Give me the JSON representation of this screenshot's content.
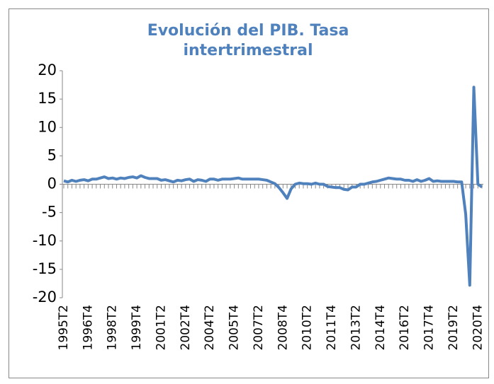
{
  "chart_data": {
    "type": "line",
    "title": "Evolución del PIB. Tasa intertrimestral",
    "categories": [
      "1995T2",
      null,
      null,
      null,
      null,
      null,
      "1996T4",
      null,
      null,
      null,
      null,
      null,
      "1998T2",
      null,
      null,
      null,
      null,
      null,
      "1999T4",
      null,
      null,
      null,
      null,
      null,
      "2001T2",
      null,
      null,
      null,
      null,
      null,
      "2002T4",
      null,
      null,
      null,
      null,
      null,
      "2004T2",
      null,
      null,
      null,
      null,
      null,
      "2005T4",
      null,
      null,
      null,
      null,
      null,
      "2007T2",
      null,
      null,
      null,
      null,
      null,
      "2008T4",
      null,
      null,
      null,
      null,
      null,
      "2010T2",
      null,
      null,
      null,
      null,
      null,
      "2011T4",
      null,
      null,
      null,
      null,
      null,
      "2013T2",
      null,
      null,
      null,
      null,
      null,
      "2014T4",
      null,
      null,
      null,
      null,
      null,
      "2016T2",
      null,
      null,
      null,
      null,
      null,
      "2017T4",
      null,
      null,
      null,
      null,
      null,
      "2019T2",
      null,
      null,
      null,
      null,
      null,
      "2020T4",
      null
    ],
    "series": [
      {
        "color": "#4f81bd",
        "values": [
          0.6,
          0.4,
          0.7,
          0.5,
          0.7,
          0.8,
          0.6,
          0.9,
          0.9,
          1.1,
          1.3,
          1.0,
          1.1,
          0.9,
          1.1,
          1.0,
          1.2,
          1.3,
          1.1,
          1.5,
          1.2,
          1.0,
          1.0,
          1.0,
          0.7,
          0.8,
          0.6,
          0.4,
          0.7,
          0.6,
          0.8,
          0.9,
          0.5,
          0.8,
          0.7,
          0.5,
          0.9,
          0.9,
          0.7,
          0.9,
          0.9,
          0.9,
          1.0,
          1.1,
          0.9,
          0.9,
          0.9,
          0.9,
          0.9,
          0.8,
          0.7,
          0.4,
          0.1,
          -0.6,
          -1.5,
          -2.5,
          -0.8,
          0.0,
          0.2,
          0.1,
          0.1,
          0.0,
          0.2,
          0.0,
          0.0,
          -0.4,
          -0.5,
          -0.6,
          -0.6,
          -0.9,
          -1.0,
          -0.5,
          -0.5,
          0.0,
          0.0,
          0.2,
          0.4,
          0.5,
          0.7,
          0.9,
          1.1,
          1.0,
          0.9,
          0.9,
          0.7,
          0.7,
          0.5,
          0.8,
          0.5,
          0.7,
          1.0,
          0.5,
          0.6,
          0.5,
          0.5,
          0.5,
          0.5,
          0.4,
          0.4,
          -5.3,
          -17.8,
          17.1,
          0.0,
          -0.5
        ]
      }
    ],
    "ylim": [
      -20,
      20
    ],
    "yticks": [
      -20,
      -15,
      -10,
      -5,
      0,
      5,
      10,
      15,
      20
    ]
  }
}
